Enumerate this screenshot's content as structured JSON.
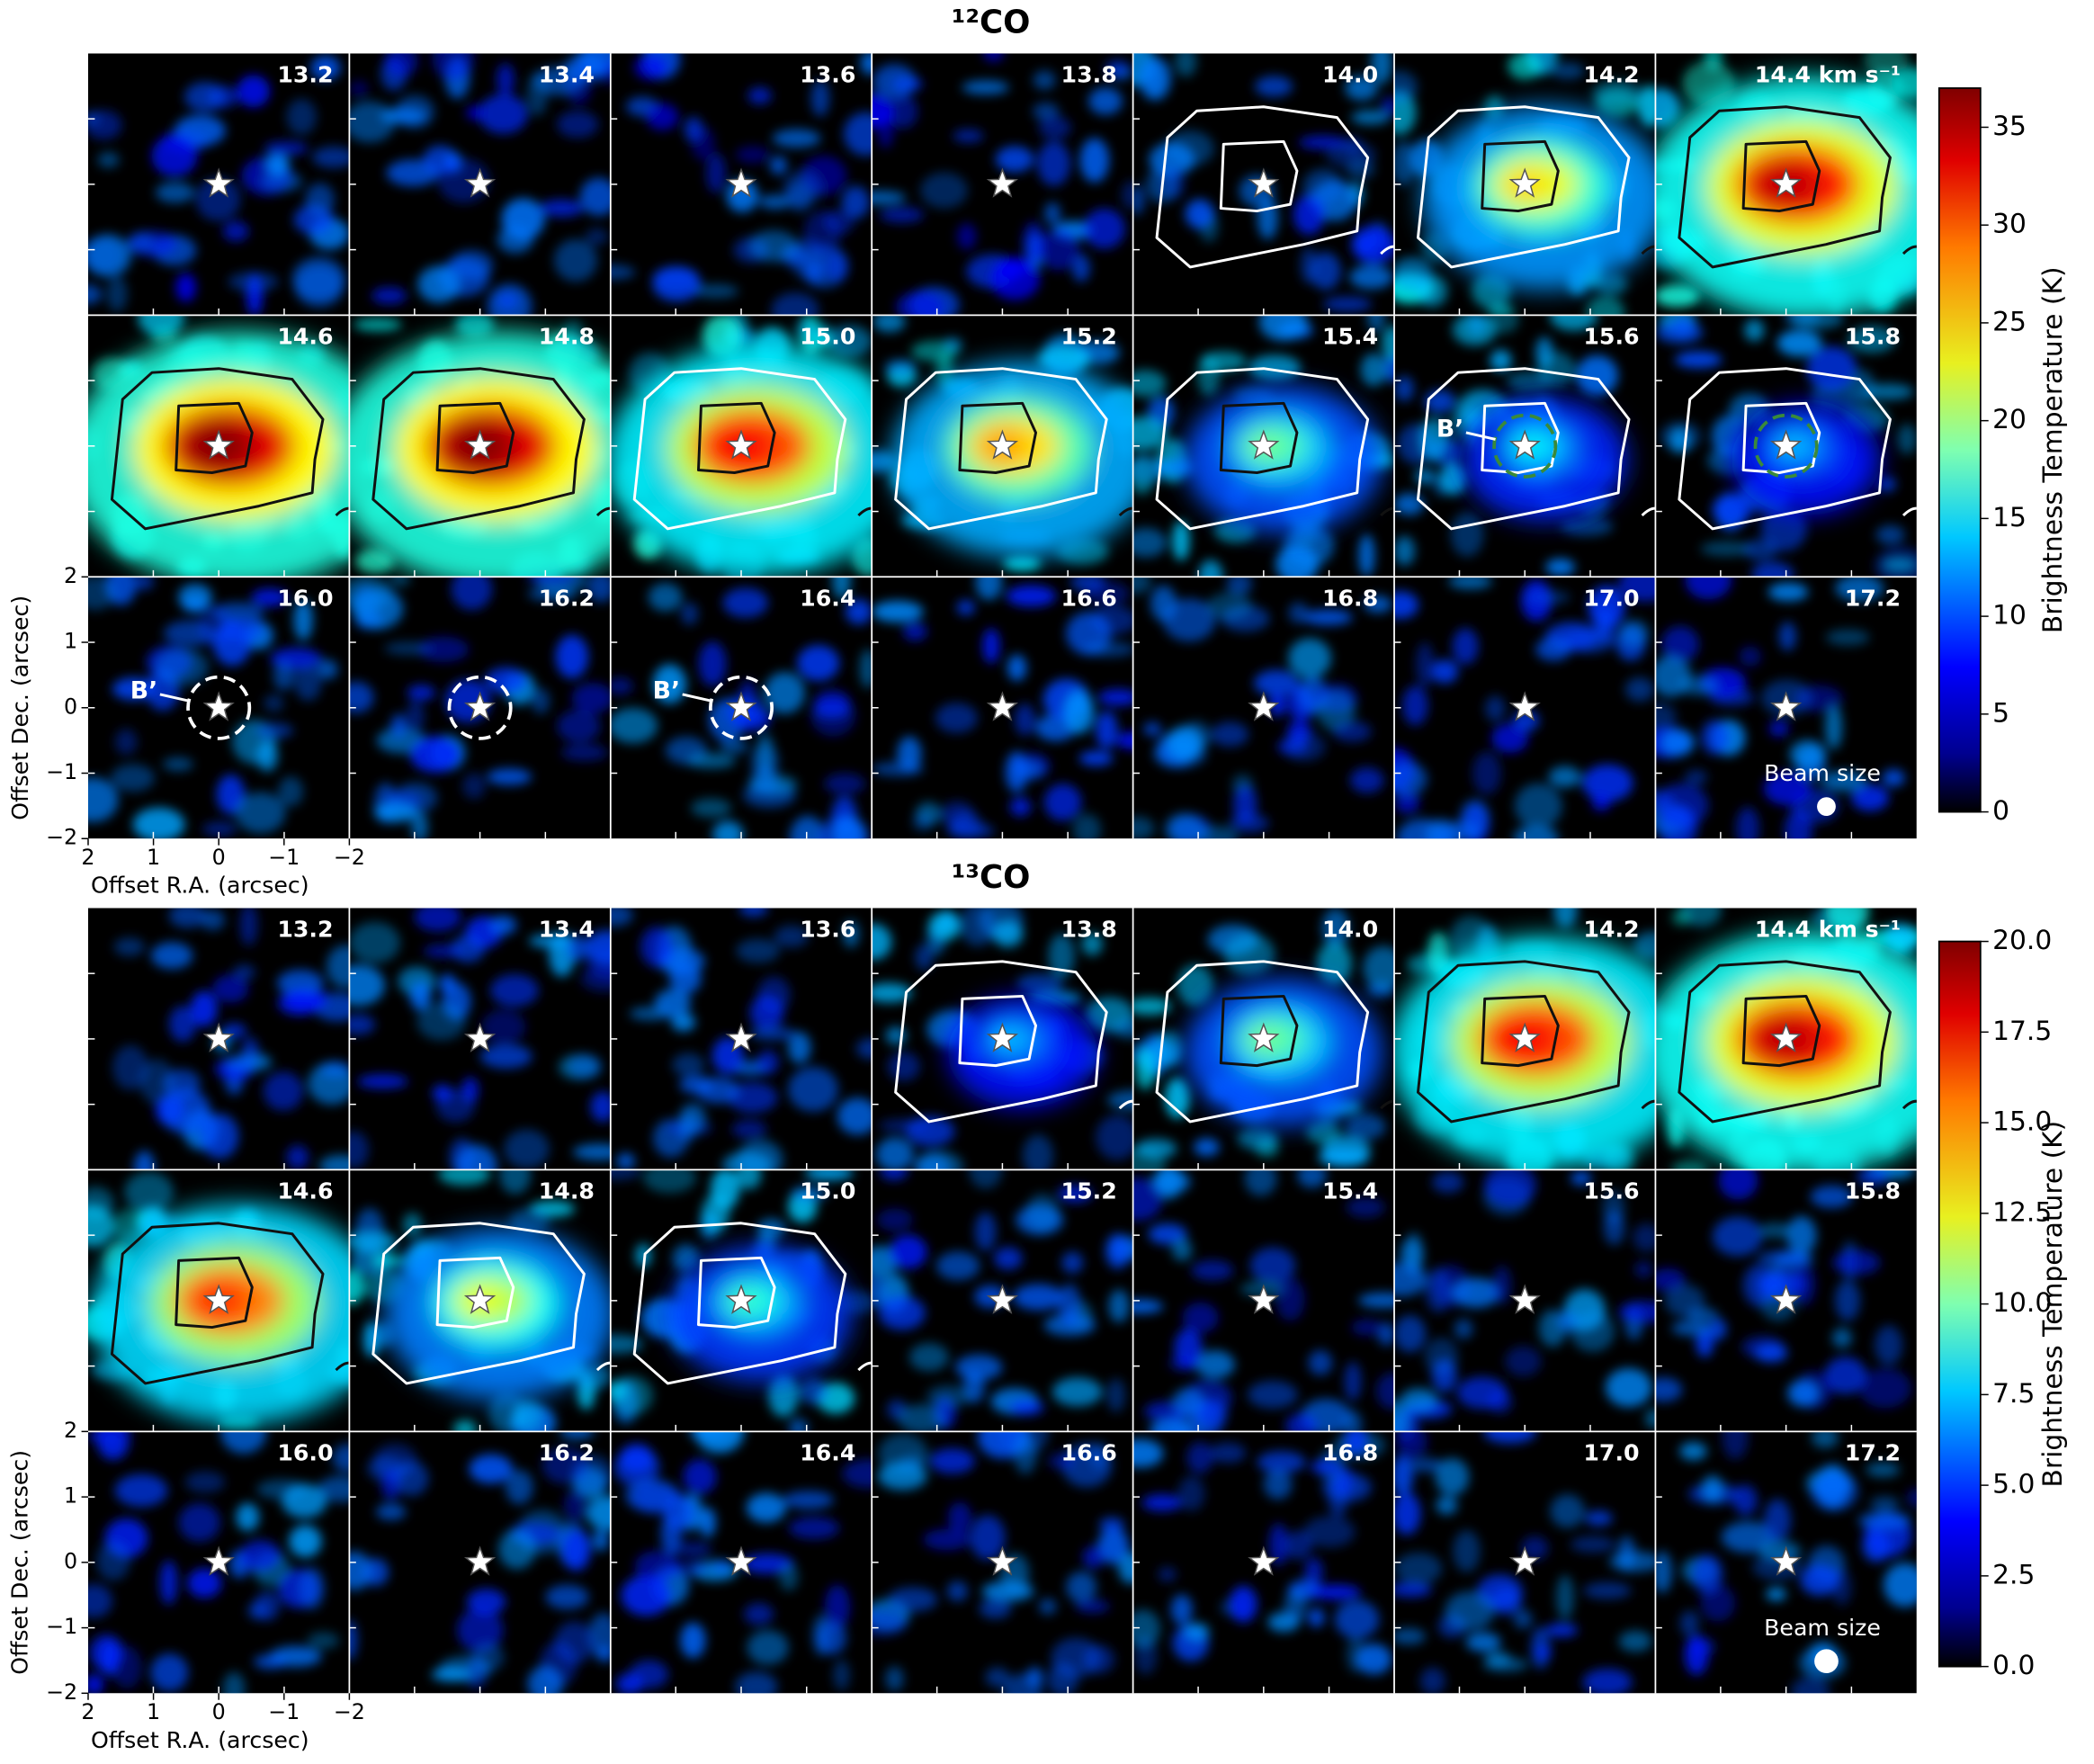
{
  "chart_data": [
    {
      "type": "channel_map",
      "title": "¹²CO",
      "channels": [
        "13.2",
        "13.4",
        "13.6",
        "13.8",
        "14.0",
        "14.2",
        "14.4 km s⁻¹",
        "14.6",
        "14.8",
        "15.0",
        "15.2",
        "15.4",
        "15.6",
        "15.8",
        "16.0",
        "16.2",
        "16.4",
        "16.6",
        "16.8",
        "17.0",
        "17.2"
      ],
      "xlabel": "Offset R.A. (arcsec)",
      "ylabel": "Offset Dec. (arcsec)",
      "xlim": [
        2,
        -2
      ],
      "xticks": [
        2,
        1,
        0,
        {
          "value": -1,
          "label": "−1"
        },
        {
          "value": -2,
          "label": "−2"
        }
      ],
      "ylim": [
        -2,
        2
      ],
      "yticks": [
        {
          "value": -2,
          "label": "−2"
        },
        {
          "value": -1,
          "label": "−1"
        },
        0,
        1,
        2
      ],
      "colorbar": {
        "label": "Brightness Temperature (K)",
        "clim": [
          0,
          37
        ],
        "ticks": [
          0,
          5,
          10,
          15,
          20,
          25,
          30,
          35
        ]
      },
      "annotations": [
        {
          "panel": 12,
          "text": "B’"
        },
        {
          "panel": 14,
          "text": "B’"
        },
        {
          "panel": 16,
          "text": "B’"
        },
        {
          "panel": 20,
          "text": "Beam size"
        }
      ]
    },
    {
      "type": "channel_map",
      "title": "¹³CO",
      "channels": [
        "13.2",
        "13.4",
        "13.6",
        "13.8",
        "14.0",
        "14.2",
        "14.4 km s⁻¹",
        "14.6",
        "14.8",
        "15.0",
        "15.2",
        "15.4",
        "15.6",
        "15.8",
        "16.0",
        "16.2",
        "16.4",
        "16.6",
        "16.8",
        "17.0",
        "17.2"
      ],
      "xlabel": "Offset R.A. (arcsec)",
      "ylabel": "Offset Dec. (arcsec)",
      "xlim": [
        2,
        -2
      ],
      "xticks": [
        2,
        1,
        0,
        {
          "value": -1,
          "label": "−1"
        },
        {
          "value": -2,
          "label": "−2"
        }
      ],
      "ylim": [
        -2,
        2
      ],
      "yticks": [
        {
          "value": -2,
          "label": "−2"
        },
        {
          "value": -1,
          "label": "−1"
        },
        0,
        1,
        2
      ],
      "colorbar": {
        "label": "Brightness Temperature (K)",
        "clim": [
          0,
          20
        ],
        "ticks": [
          {
            "value": 0,
            "label": "0.0"
          },
          2.5,
          {
            "value": 5,
            "label": "5.0"
          },
          7.5,
          {
            "value": 10,
            "label": "10.0"
          },
          12.5,
          {
            "value": 15,
            "label": "15.0"
          },
          17.5,
          {
            "value": 20,
            "label": "20.0"
          }
        ]
      },
      "annotations": [
        {
          "panel": 20,
          "text": "Beam size"
        }
      ]
    }
  ]
}
